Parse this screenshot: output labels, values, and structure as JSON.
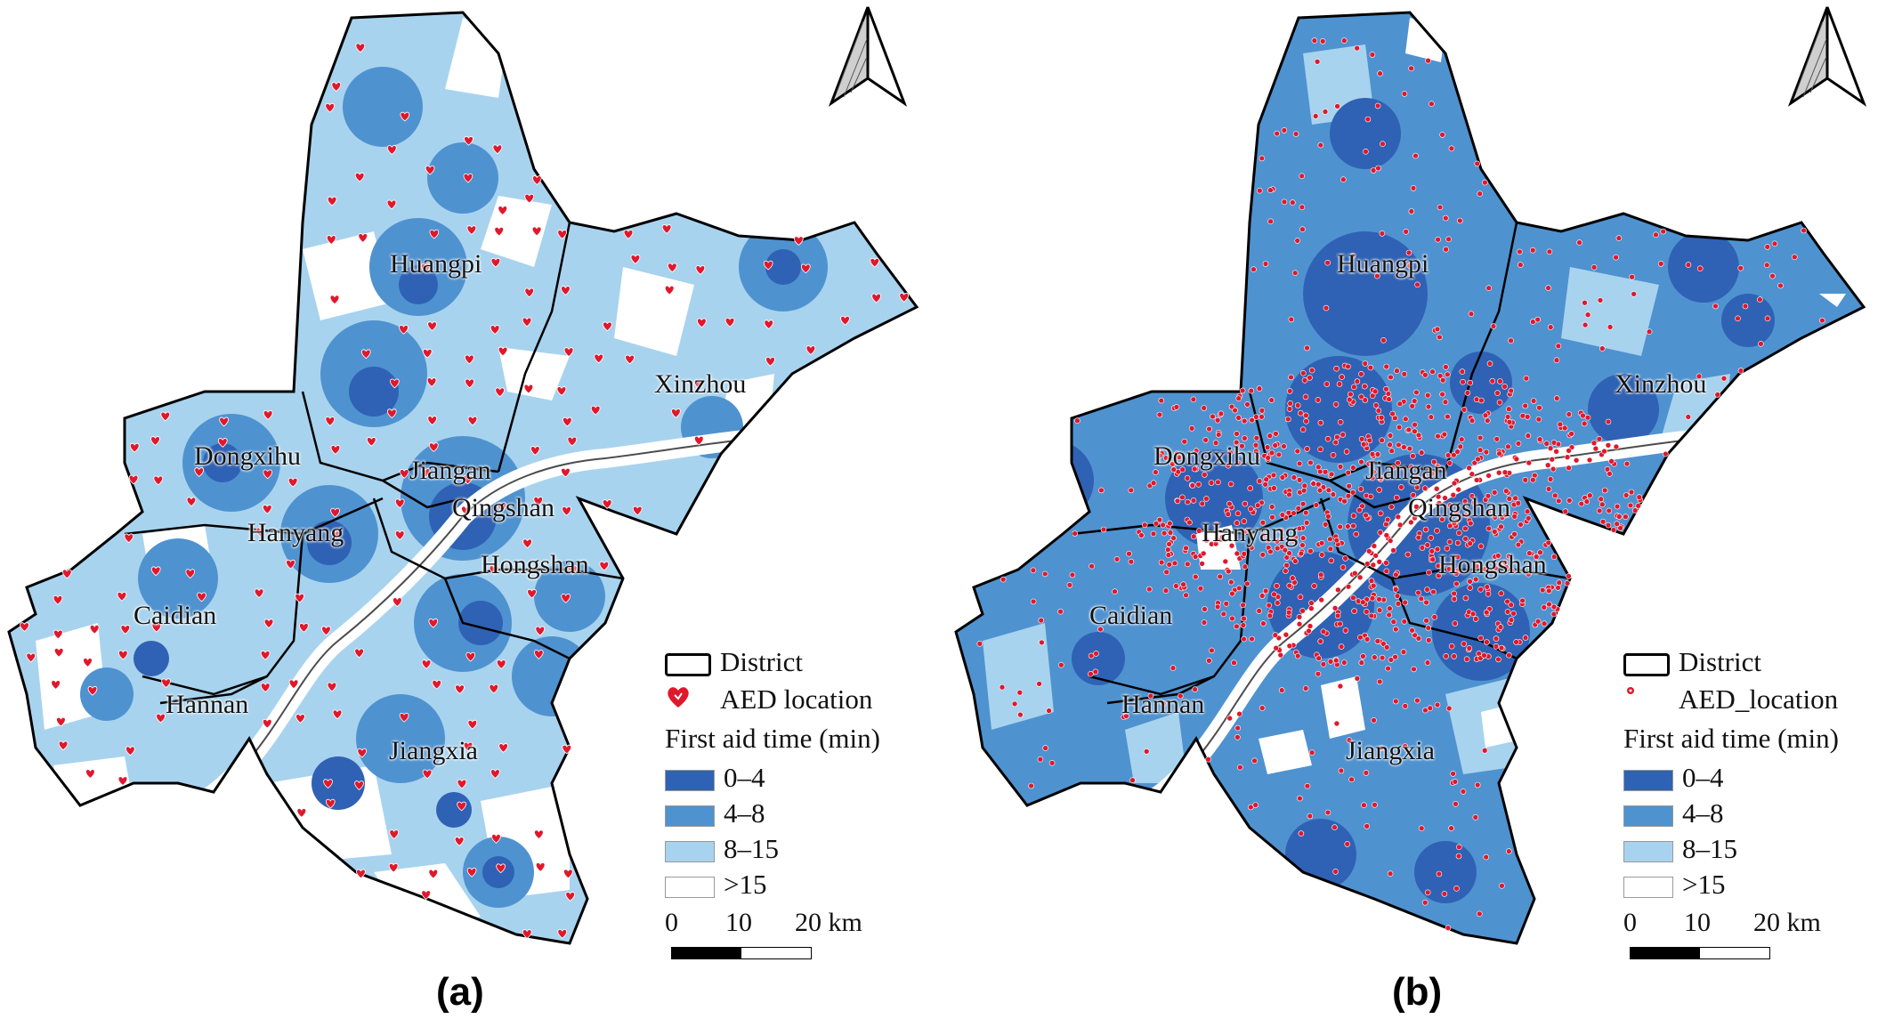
{
  "panels": [
    {
      "caption": "(a)",
      "districts": {
        "huangpi": "Huangpi",
        "xinzhou": "Xinzhou",
        "dongxihu": "Dongxihu",
        "jiangan": "Jiangan",
        "qingshan": "Qingshan",
        "hanyang": "Hanyang",
        "hongshan": "Hongshan",
        "caidian": "Caidian",
        "hannan": "Hannan",
        "jiangxia": "Jiangxia"
      },
      "legend": {
        "district": "District",
        "aed": "AED location",
        "title": "First aid time (min)",
        "classes": [
          "0–4",
          "4–8",
          "8–15",
          ">15"
        ]
      },
      "scale_bar": {
        "ticks": [
          "0",
          "10",
          "20 km"
        ]
      },
      "aed_marker_style": "large-heart"
    },
    {
      "caption": "(b)",
      "districts": {
        "huangpi": "Huangpi",
        "xinzhou": "Xinzhou",
        "dongxihu": "Dongxihu",
        "jiangan": "Jiangan",
        "qingshan": "Qingshan",
        "hanyang": "Hanyang",
        "hongshan": "Hongshan",
        "caidian": "Caidian",
        "hannan": "Hannan",
        "jiangxia": "Jiangxia"
      },
      "legend": {
        "district": "District",
        "aed": "AED_location",
        "title": "First aid time (min)",
        "classes": [
          "0–4",
          "4–8",
          "8–15",
          ">15"
        ]
      },
      "scale_bar": {
        "ticks": [
          "0",
          "10",
          "20 km"
        ]
      },
      "aed_marker_style": "small-dot"
    }
  ],
  "colors": {
    "class_0_4": "#2f62b4",
    "class_4_8": "#4f92d0",
    "class_8_15": "#a8d3ee",
    "class_gt15": "#ffffff",
    "aed_red": "#e0182c",
    "boundary": "#000000",
    "river_outline": "#000000"
  },
  "icons": [
    "north-arrow-icon",
    "aed-heart-icon"
  ]
}
